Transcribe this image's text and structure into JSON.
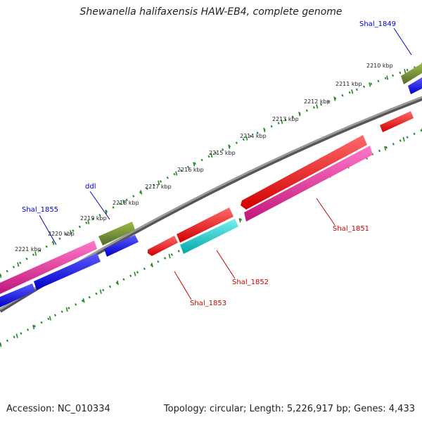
{
  "title": "Shewanella halifaxensis HAW-EB4, complete genome",
  "footer": {
    "accession": "Accession: NC_010334",
    "topology": "Topology: circular; Length: 5,226,917 bp; Genes: 4,433"
  },
  "ruler_labels": [
    "2210 kbp",
    "2211 kbp",
    "2212 kbp",
    "2213 kbp",
    "2214 kbp",
    "2215 kbp",
    "2216 kbp",
    "2217 kbp",
    "2218 kbp",
    "2219 kbp",
    "2220 kbp",
    "2221 kbp"
  ],
  "gene_labels": {
    "shal_1849": "Shal_1849",
    "ddl": "ddl",
    "shal_1855": "Shal_1855",
    "shal_1851": "Shal_1851",
    "shal_1852": "Shal_1852",
    "shal_1853": "Shal_1853"
  },
  "colors": {
    "backbone": "#808080",
    "ruler_ticks": "#228b22",
    "forward_cds": "#0000ff",
    "reverse_cds": "#ff0000",
    "olive_feature": "#6b8e23",
    "magenta_feature": "#e0208f",
    "cyan_feature": "#00c8c8",
    "forward_label": "#0000cc",
    "reverse_label": "#cc0000"
  }
}
